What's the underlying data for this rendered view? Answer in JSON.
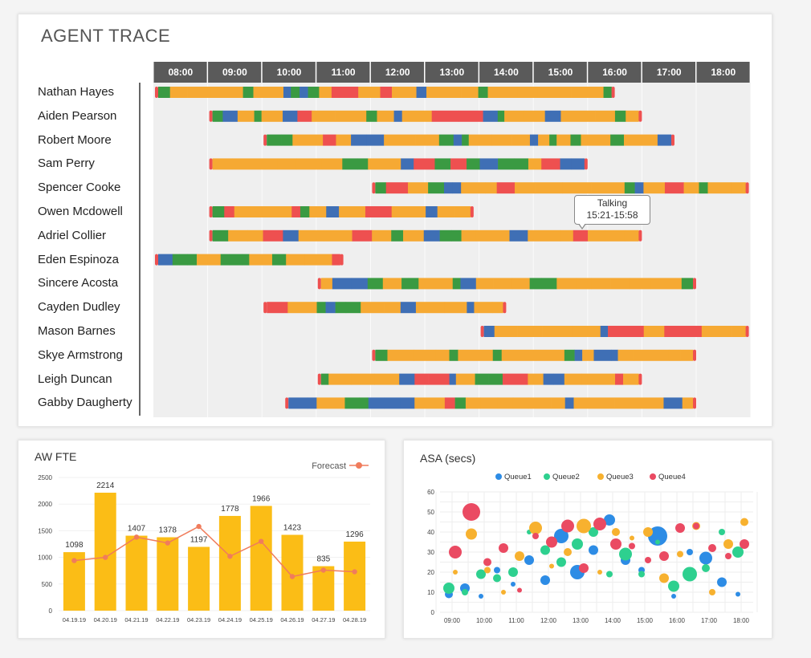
{
  "agent_trace": {
    "title": "AGENT TRACE",
    "hours": [
      "08:00",
      "09:00",
      "10:00",
      "11:00",
      "12:00",
      "13:00",
      "14:00",
      "15:00",
      "16:00",
      "17:00",
      "18:00"
    ],
    "agents": [
      {
        "name": "Nathan Hayes",
        "start": 8.0,
        "end": 16.5
      },
      {
        "name": "Aiden Pearson",
        "start": 9.0,
        "end": 17.0
      },
      {
        "name": "Robert Moore",
        "start": 10.0,
        "end": 17.6
      },
      {
        "name": "Sam Perry",
        "start": 9.0,
        "end": 16.0
      },
      {
        "name": "Spencer Cooke",
        "start": 12.0,
        "end": 19.0
      },
      {
        "name": "Owen Mcdowell",
        "start": 9.0,
        "end": 13.9
      },
      {
        "name": "Adriel Collier",
        "start": 9.0,
        "end": 17.0
      },
      {
        "name": "Eden Espinoza",
        "start": 8.0,
        "end": 11.5
      },
      {
        "name": "Sincere Acosta",
        "start": 11.0,
        "end": 18.0
      },
      {
        "name": "Cayden Dudley",
        "start": 10.0,
        "end": 14.5
      },
      {
        "name": "Mason Barnes",
        "start": 14.0,
        "end": 19.0
      },
      {
        "name": "Skye Armstrong",
        "start": 12.0,
        "end": 18.0
      },
      {
        "name": "Leigh Duncan",
        "start": 11.0,
        "end": 17.0
      },
      {
        "name": "Gabby Daugherty",
        "start": 10.4,
        "end": 18.0
      }
    ],
    "state_colors": {
      "talking": "#f6a933",
      "ready": "#3a9a42",
      "hold": "#3f6fb5",
      "aux": "#ee5050"
    },
    "tooltip": {
      "state": "Talking",
      "range": "15:21-15:58"
    }
  },
  "fte_chart": {
    "title": "AW FTE",
    "legend": "Forecast",
    "chart_data": {
      "type": "bar",
      "categories": [
        "04.19.19",
        "04.20.19",
        "04.21.19",
        "04.22.19",
        "04.23.19",
        "04.24.19",
        "04.25.19",
        "04.26.19",
        "04.27.19",
        "04.28.19"
      ],
      "series": [
        {
          "values": [
            1098,
            2214,
            1407,
            1378,
            1197,
            1778,
            1966,
            1423,
            835,
            1296
          ]
        },
        {
          "name": "Forecast",
          "values": [
            940,
            1000,
            1380,
            1270,
            1580,
            1020,
            1300,
            640,
            760,
            730
          ]
        }
      ],
      "yticks": [
        "0",
        "500",
        "1000",
        "1500",
        "2000",
        "2500"
      ],
      "ylim": [
        0,
        2500
      ],
      "bar_color": "#fbbd16",
      "line_color": "#f07c5c"
    }
  },
  "asa_chart": {
    "title": "ASA (secs)",
    "chart_data": {
      "type": "scatter",
      "xticks": [
        "09:00",
        "10:00",
        "11:00",
        "12:00",
        "13:00",
        "14:00",
        "15:00",
        "16:00",
        "17:00",
        "18:00"
      ],
      "yticks": [
        "0",
        "10",
        "20",
        "30",
        "40",
        "50",
        "60"
      ],
      "xlim": [
        9,
        18
      ],
      "ylim": [
        0,
        60
      ],
      "series": [
        {
          "name": "Queue1",
          "color": "#2d8ce5",
          "points": [
            [
              9,
              9,
              5
            ],
            [
              9.5,
              12,
              6
            ],
            [
              10,
              8,
              3
            ],
            [
              10.5,
              21,
              4
            ],
            [
              11,
              14,
              3
            ],
            [
              11.5,
              26,
              6
            ],
            [
              12,
              16,
              6
            ],
            [
              12.5,
              38,
              9
            ],
            [
              13,
              20,
              9
            ],
            [
              13.5,
              31,
              6
            ],
            [
              14,
              46,
              7
            ],
            [
              14.5,
              26,
              6
            ],
            [
              15,
              21,
              4
            ],
            [
              15.5,
              38,
              12
            ],
            [
              16,
              8,
              3
            ],
            [
              16.5,
              30,
              4
            ],
            [
              17,
              27,
              8
            ],
            [
              17.5,
              15,
              6
            ],
            [
              18,
              9,
              3
            ]
          ]
        },
        {
          "name": "Queue2",
          "color": "#2ed08f",
          "points": [
            [
              9,
              12,
              7
            ],
            [
              9.5,
              10,
              4
            ],
            [
              10,
              19,
              6
            ],
            [
              10.5,
              17,
              5
            ],
            [
              11,
              20,
              6
            ],
            [
              11.5,
              40,
              3
            ],
            [
              12,
              31,
              6
            ],
            [
              12.5,
              25,
              6
            ],
            [
              13,
              34,
              7
            ],
            [
              13.5,
              40,
              6
            ],
            [
              14,
              19,
              4
            ],
            [
              14.5,
              29,
              8
            ],
            [
              15,
              19,
              4
            ],
            [
              15.5,
              35,
              3
            ],
            [
              16,
              13,
              7
            ],
            [
              16.5,
              19,
              9
            ],
            [
              17,
              22,
              5
            ],
            [
              17.5,
              40,
              4
            ],
            [
              18,
              30,
              7
            ]
          ]
        },
        {
          "name": "Queue3",
          "color": "#f7b12f",
          "points": [
            [
              9,
              20,
              3
            ],
            [
              9.5,
              39,
              7
            ],
            [
              10,
              21,
              4
            ],
            [
              10.5,
              10,
              3
            ],
            [
              11,
              28,
              6
            ],
            [
              11.5,
              42,
              8
            ],
            [
              12,
              23,
              3
            ],
            [
              12.5,
              30,
              5
            ],
            [
              13,
              43,
              9
            ],
            [
              13.5,
              20,
              3
            ],
            [
              14,
              40,
              5
            ],
            [
              14.5,
              37,
              3
            ],
            [
              15,
              40,
              6
            ],
            [
              15.5,
              17,
              6
            ],
            [
              16,
              29,
              4
            ],
            [
              16.5,
              43,
              5
            ],
            [
              17,
              10,
              4
            ],
            [
              17.5,
              34,
              6
            ],
            [
              18,
              45,
              5
            ]
          ]
        },
        {
          "name": "Queue4",
          "color": "#ea4a62",
          "points": [
            [
              9,
              30,
              8
            ],
            [
              9.5,
              50,
              11
            ],
            [
              10,
              25,
              5
            ],
            [
              10.5,
              32,
              6
            ],
            [
              11,
              11,
              3
            ],
            [
              11.5,
              38,
              4
            ],
            [
              12,
              35,
              7
            ],
            [
              12.5,
              43,
              8
            ],
            [
              13,
              22,
              6
            ],
            [
              13.5,
              44,
              8
            ],
            [
              14,
              34,
              7
            ],
            [
              14.5,
              33,
              4
            ],
            [
              15,
              26,
              4
            ],
            [
              15.5,
              28,
              6
            ],
            [
              16,
              42,
              6
            ],
            [
              16.5,
              43,
              4
            ],
            [
              17,
              32,
              5
            ],
            [
              17.5,
              28,
              4
            ],
            [
              18,
              34,
              6
            ]
          ]
        }
      ]
    }
  }
}
